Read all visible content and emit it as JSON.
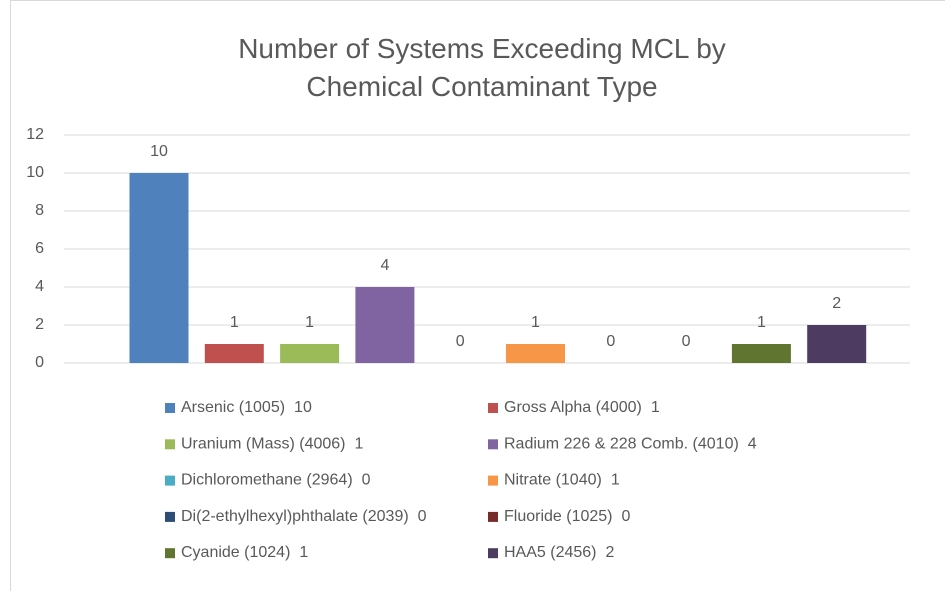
{
  "chart_data": {
    "type": "bar",
    "title": "Number of Systems Exceeding MCL by Chemical Contaminant Type",
    "categories": [
      null
    ],
    "series": [
      {
        "name": "Arsenic (1005)",
        "color": "#4f81bd",
        "values": [
          10
        ]
      },
      {
        "name": "Gross Alpha (4000)",
        "color": "#c0504d",
        "values": [
          1
        ]
      },
      {
        "name": "Uranium (Mass) (4006)",
        "color": "#9bbb59",
        "values": [
          1
        ]
      },
      {
        "name": "Radium 226 & 228 Comb. (4010)",
        "color": "#8064a2",
        "values": [
          4
        ]
      },
      {
        "name": "Dichloromethane (2964)",
        "color": "#4bacc6",
        "values": [
          0
        ]
      },
      {
        "name": "Nitrate (1040)",
        "color": "#f79646",
        "values": [
          1
        ]
      },
      {
        "name": "Di(2-ethylhexyl)phthalate (2039)",
        "color": "#2c4d75",
        "values": [
          0
        ]
      },
      {
        "name": "Fluoride (1025)",
        "color": "#772c2a",
        "values": [
          0
        ]
      },
      {
        "name": "Cyanide (1024)",
        "color": "#5f7530",
        "values": [
          1
        ]
      },
      {
        "name": "HAA5 (2456)",
        "color": "#4d3b62",
        "values": [
          2
        ]
      }
    ],
    "ylim": [
      0,
      12
    ],
    "yticks": [
      0,
      2,
      4,
      6,
      8,
      10,
      12
    ],
    "grid": true,
    "legend": "bottom"
  }
}
